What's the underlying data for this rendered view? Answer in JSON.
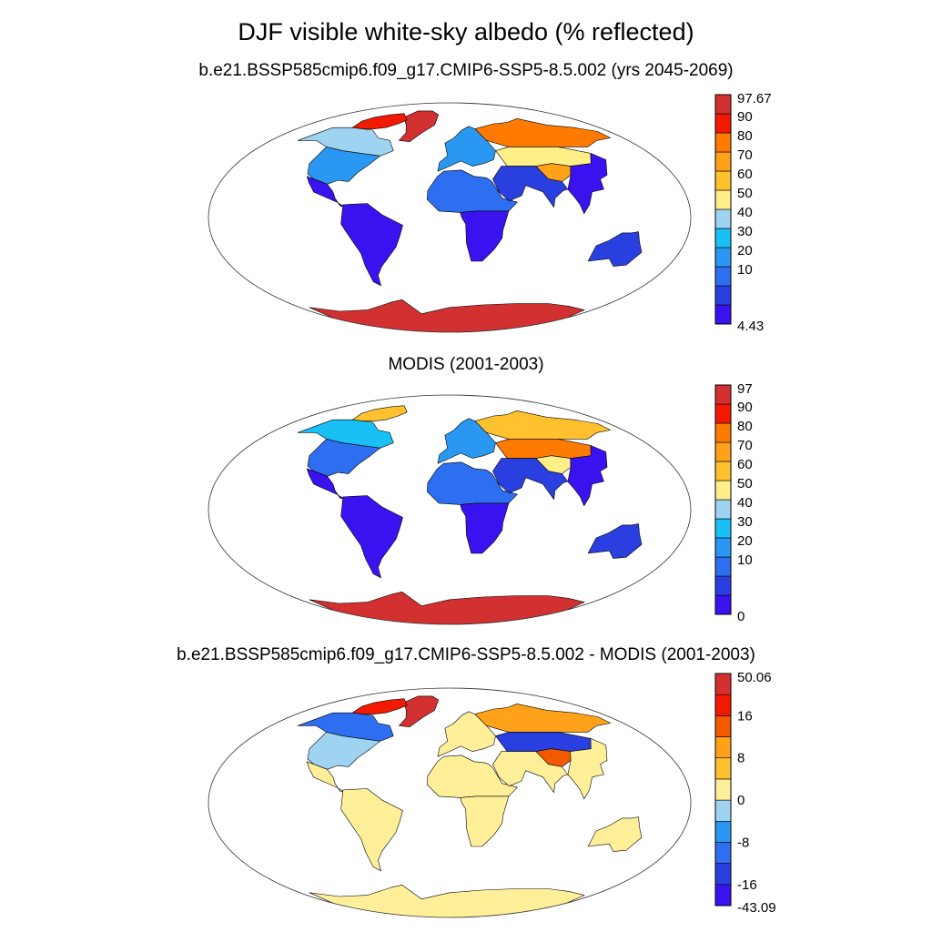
{
  "figure": {
    "title": "DJF visible white-sky albedo (% reflected)"
  },
  "chart_data": [
    {
      "type": "heatmap",
      "title": "b.e21.BSSP585cmip6.f09_g17.CMIP6-SSP5-8.5.002 (yrs 2045-2069)",
      "projection": "Robinson",
      "colorbar": {
        "position": "right",
        "min_label": "4.43",
        "max_label": "97.67",
        "tick_labels": [
          "90",
          "80",
          "70",
          "60",
          "50",
          "40",
          "30",
          "20",
          "10"
        ],
        "colors": [
          "#3a12f0",
          "#2a3fe0",
          "#2e6ef0",
          "#2a98f2",
          "#19c0f5",
          "#9ed3f2",
          "#ffef88",
          "#ffc22e",
          "#ffa119",
          "#ff7a00",
          "#f31800",
          "#d33131"
        ]
      },
      "regions": [
        {
          "name": "Antarctica",
          "level": 11
        },
        {
          "name": "Greenland",
          "level": 11
        },
        {
          "name": "Canadian Arctic",
          "level": 10
        },
        {
          "name": "North America boreal",
          "level": 5
        },
        {
          "name": "North America mid-latitude",
          "level": 3
        },
        {
          "name": "Central America",
          "level": 0
        },
        {
          "name": "South America",
          "level": 0
        },
        {
          "name": "Africa north",
          "level": 2
        },
        {
          "name": "Africa south",
          "level": 0
        },
        {
          "name": "Europe",
          "level": 3
        },
        {
          "name": "Siberia",
          "level": 9
        },
        {
          "name": "Central Asia",
          "level": 6
        },
        {
          "name": "Tibetan Plateau",
          "level": 8
        },
        {
          "name": "South Asia",
          "level": 1
        },
        {
          "name": "Southeast Asia",
          "level": 0
        },
        {
          "name": "Australia",
          "level": 1
        }
      ]
    },
    {
      "type": "heatmap",
      "title": "MODIS (2001-2003)",
      "projection": "Robinson",
      "colorbar": {
        "position": "right",
        "min_label": "0",
        "max_label": "97",
        "tick_labels": [
          "90",
          "80",
          "70",
          "60",
          "50",
          "40",
          "30",
          "20",
          "10"
        ],
        "colors": [
          "#3a12f0",
          "#2a3fe0",
          "#2e6ef0",
          "#2a98f2",
          "#19c0f5",
          "#9ed3f2",
          "#ffef88",
          "#ffc22e",
          "#ffa119",
          "#ff7a00",
          "#f31800",
          "#d33131"
        ]
      },
      "regions": [
        {
          "name": "Antarctica",
          "level": 11
        },
        {
          "name": "Canadian Arctic",
          "level": 7
        },
        {
          "name": "North America boreal",
          "level": 4
        },
        {
          "name": "North America mid-latitude",
          "level": 2
        },
        {
          "name": "Central America",
          "level": 0
        },
        {
          "name": "South America",
          "level": 0
        },
        {
          "name": "Africa north",
          "level": 2
        },
        {
          "name": "Africa south",
          "level": 0
        },
        {
          "name": "Europe",
          "level": 3
        },
        {
          "name": "Siberia",
          "level": 7
        },
        {
          "name": "Central Asia",
          "level": 9
        },
        {
          "name": "Tibetan Plateau",
          "level": 6
        },
        {
          "name": "South Asia",
          "level": 1
        },
        {
          "name": "Southeast Asia",
          "level": 0
        },
        {
          "name": "Australia",
          "level": 1
        }
      ]
    },
    {
      "type": "heatmap",
      "title": "b.e21.BSSP585cmip6.f09_g17.CMIP6-SSP5-8.5.002 - MODIS (2001-2003)",
      "projection": "Robinson",
      "colorbar": {
        "position": "right",
        "min_label": "-43.09",
        "max_label": "50.06",
        "tick_labels": [
          "16",
          "8",
          "0",
          "-8",
          "-16"
        ],
        "tick_levels": [
          9,
          7,
          5,
          3,
          1
        ],
        "colors": [
          "#3a12f0",
          "#2a3fe0",
          "#2e6ef0",
          "#2a98f2",
          "#9ed3f2",
          "#ffef99",
          "#ffc22e",
          "#ffa119",
          "#f35a00",
          "#f31800",
          "#d33131"
        ]
      },
      "regions": [
        {
          "name": "Antarctica",
          "level": 5
        },
        {
          "name": "Greenland",
          "level": 10
        },
        {
          "name": "Canadian Arctic",
          "level": 9
        },
        {
          "name": "North America boreal",
          "level": 2
        },
        {
          "name": "North America mid-latitude",
          "level": 4
        },
        {
          "name": "Central America",
          "level": 5
        },
        {
          "name": "South America",
          "level": 5
        },
        {
          "name": "Africa north",
          "level": 5
        },
        {
          "name": "Africa south",
          "level": 5
        },
        {
          "name": "Europe",
          "level": 5
        },
        {
          "name": "Siberia",
          "level": 7
        },
        {
          "name": "Central Asia",
          "level": 1
        },
        {
          "name": "Tibetan Plateau",
          "level": 8
        },
        {
          "name": "South Asia",
          "level": 5
        },
        {
          "name": "Southeast Asia",
          "level": 5
        },
        {
          "name": "Australia",
          "level": 5
        }
      ]
    }
  ]
}
